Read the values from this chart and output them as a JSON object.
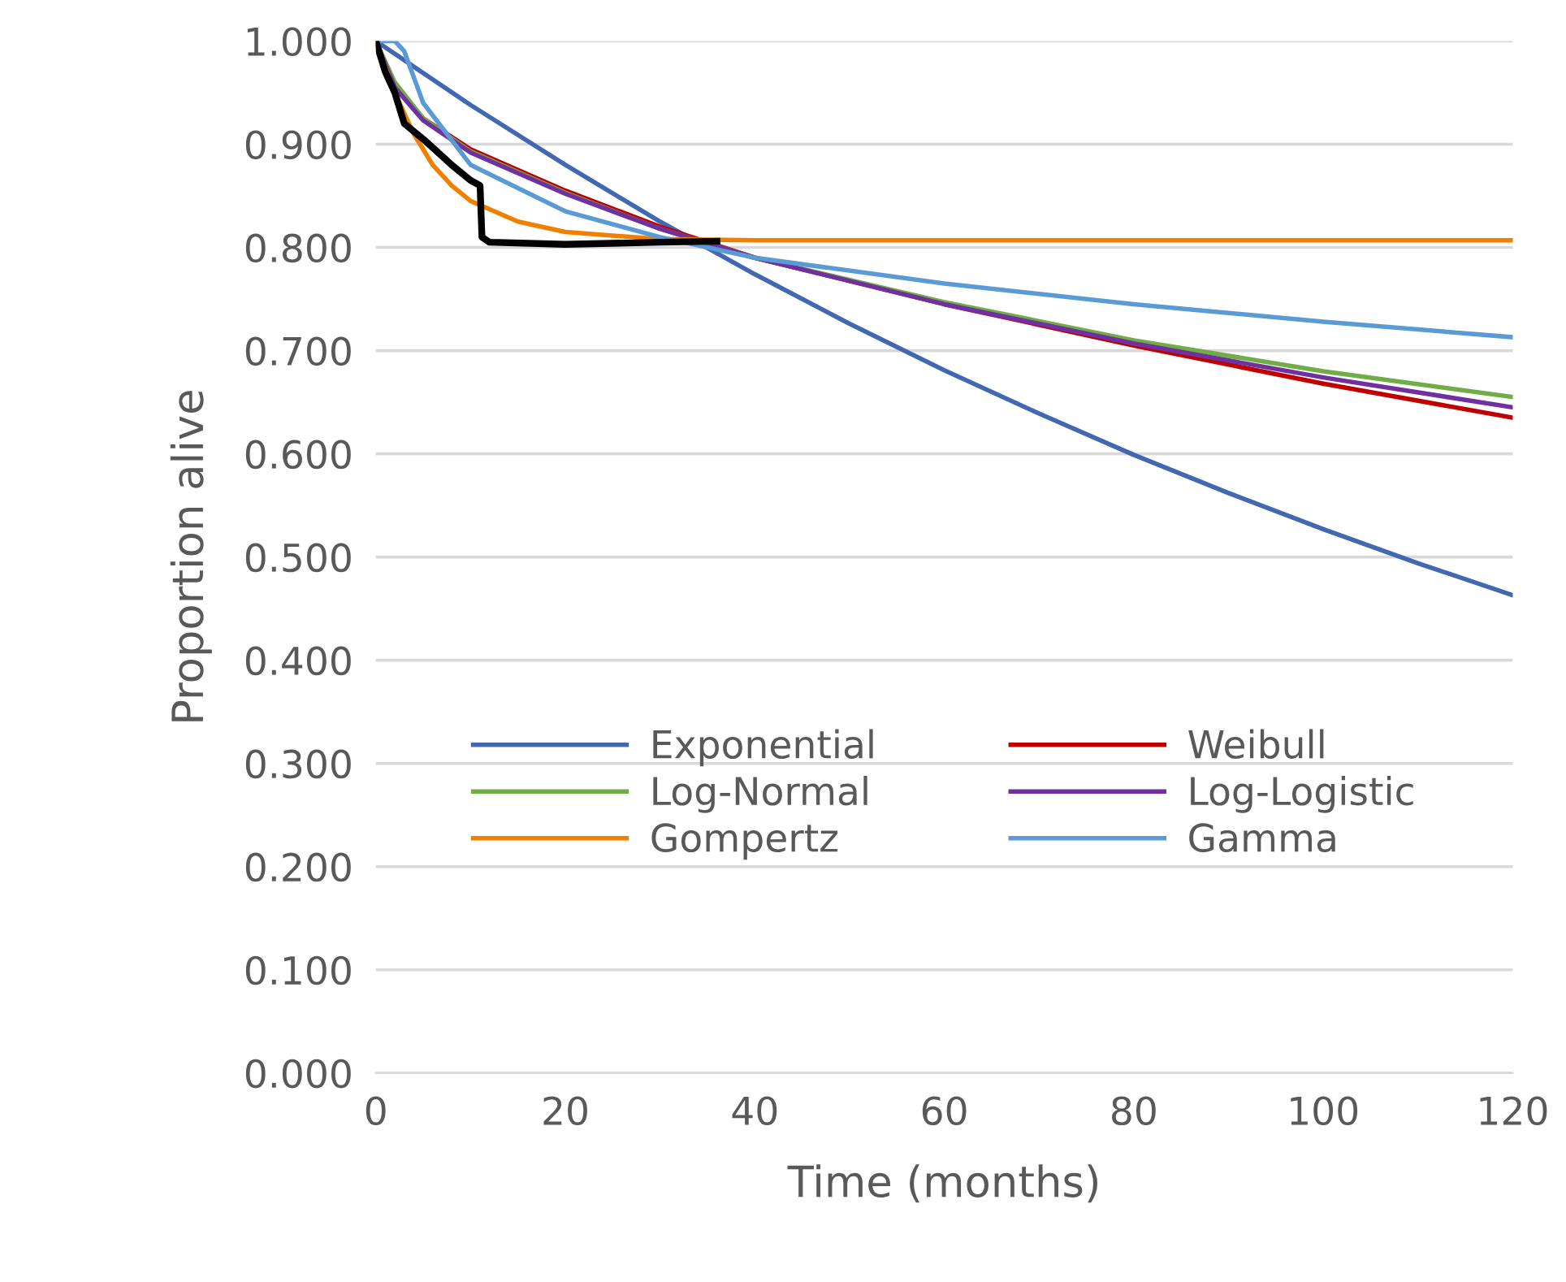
{
  "chart_data": {
    "type": "line",
    "xlabel": "Time (months)",
    "ylabel": "Proportion alive",
    "xlim": [
      0,
      120
    ],
    "xticks": [
      0,
      20,
      40,
      60,
      80,
      100,
      120
    ],
    "ylim": [
      0,
      1
    ],
    "yticks": [
      {
        "value": 0,
        "label": "0.000"
      },
      {
        "value": 0.1,
        "label": "0.100"
      },
      {
        "value": 0.2,
        "label": "0.200"
      },
      {
        "value": 0.3,
        "label": "0.300"
      },
      {
        "value": 0.4,
        "label": "0.400"
      },
      {
        "value": 0.5,
        "label": "0.500"
      },
      {
        "value": 0.6,
        "label": "0.600"
      },
      {
        "value": 0.7,
        "label": "0.700"
      },
      {
        "value": 0.8,
        "label": "0.800"
      },
      {
        "value": 0.9,
        "label": "0.900"
      },
      {
        "value": 1,
        "label": "1.000"
      }
    ],
    "grid": "y",
    "legend": "bottom",
    "marker": "none",
    "line_style": "solid",
    "series": [
      {
        "name": "Exponential",
        "color": "#4168b0",
        "x": [
          0,
          10,
          20,
          30,
          40,
          50,
          60,
          70,
          80,
          90,
          100,
          110,
          120
        ],
        "values": [
          1,
          0.938,
          0.88,
          0.825,
          0.774,
          0.726,
          0.681,
          0.639,
          0.599,
          0.562,
          0.527,
          0.494,
          0.463
        ]
      },
      {
        "name": "Weibull",
        "color": "#c00000",
        "x": [
          0,
          2,
          5,
          10,
          20,
          30,
          40,
          60,
          80,
          100,
          120
        ],
        "values": [
          1,
          0.955,
          0.925,
          0.895,
          0.855,
          0.82,
          0.79,
          0.745,
          0.705,
          0.668,
          0.635
        ]
      },
      {
        "name": "Log-Normal",
        "color": "#70ad47",
        "x": [
          0,
          2,
          5,
          10,
          20,
          30,
          40,
          60,
          80,
          100,
          120
        ],
        "values": [
          1,
          0.96,
          0.925,
          0.893,
          0.853,
          0.818,
          0.79,
          0.747,
          0.71,
          0.68,
          0.655
        ]
      },
      {
        "name": "Log-Logistic",
        "color": "#7030a0",
        "x": [
          0,
          2,
          5,
          10,
          20,
          30,
          40,
          60,
          80,
          100,
          120
        ],
        "values": [
          1,
          0.955,
          0.923,
          0.892,
          0.852,
          0.818,
          0.79,
          0.745,
          0.707,
          0.674,
          0.645
        ]
      },
      {
        "name": "Gompertz",
        "color": "#f08000",
        "x": [
          0,
          2,
          4,
          6,
          8,
          10,
          15,
          20,
          30,
          40,
          60,
          80,
          100,
          120
        ],
        "values": [
          1,
          0.95,
          0.91,
          0.88,
          0.86,
          0.845,
          0.825,
          0.815,
          0.808,
          0.807,
          0.807,
          0.807,
          0.807,
          0.807
        ]
      },
      {
        "name": "Gamma",
        "color": "#5b9bd5",
        "x": [
          0,
          2,
          3,
          5,
          10,
          20,
          30,
          40,
          60,
          80,
          100,
          120
        ],
        "values": [
          1,
          1,
          0.99,
          0.94,
          0.88,
          0.835,
          0.81,
          0.79,
          0.765,
          0.745,
          0.728,
          0.713
        ]
      },
      {
        "color": "#000000",
        "x": [
          0,
          1,
          2,
          3,
          5,
          8,
          10,
          11,
          11.2,
          12,
          20,
          30,
          36
        ],
        "values": [
          1,
          0.97,
          0.95,
          0.92,
          0.905,
          0.88,
          0.865,
          0.86,
          0.81,
          0.805,
          0.803,
          0.805,
          0.806
        ]
      }
    ]
  }
}
